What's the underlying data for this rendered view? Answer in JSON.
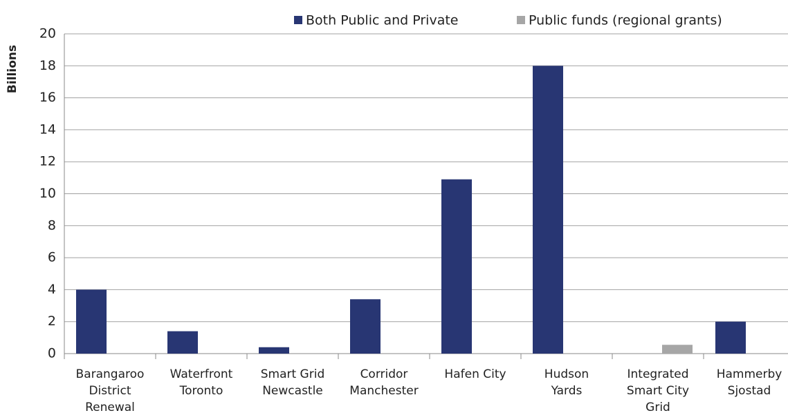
{
  "chart_data": {
    "type": "bar",
    "y_label": "Billions",
    "categories": [
      [
        "Barangaroo",
        "District",
        "Renewal"
      ],
      [
        "Waterfront",
        "Toronto"
      ],
      [
        "Smart Grid",
        "Newcastle"
      ],
      [
        "Corridor",
        "Manchester"
      ],
      [
        "Hafen City"
      ],
      [
        "Hudson",
        "Yards"
      ],
      [
        "Integrated",
        "Smart City",
        "Grid"
      ],
      [
        "Hammerby",
        "Sjostad"
      ]
    ],
    "series": [
      {
        "name": "Both Public and Private",
        "color": "#283673",
        "values": [
          4,
          1.4,
          0.4,
          3.4,
          10.9,
          18,
          null,
          2
        ]
      },
      {
        "name": "Public funds (regional grants)",
        "color": "#a6a6a6",
        "values": [
          null,
          null,
          null,
          null,
          null,
          null,
          0.55,
          null
        ]
      }
    ],
    "ylim": [
      0,
      20
    ],
    "yticks": [
      0,
      2,
      4,
      6,
      8,
      10,
      12,
      14,
      16,
      18,
      20
    ],
    "grid": true,
    "legend": "top"
  }
}
